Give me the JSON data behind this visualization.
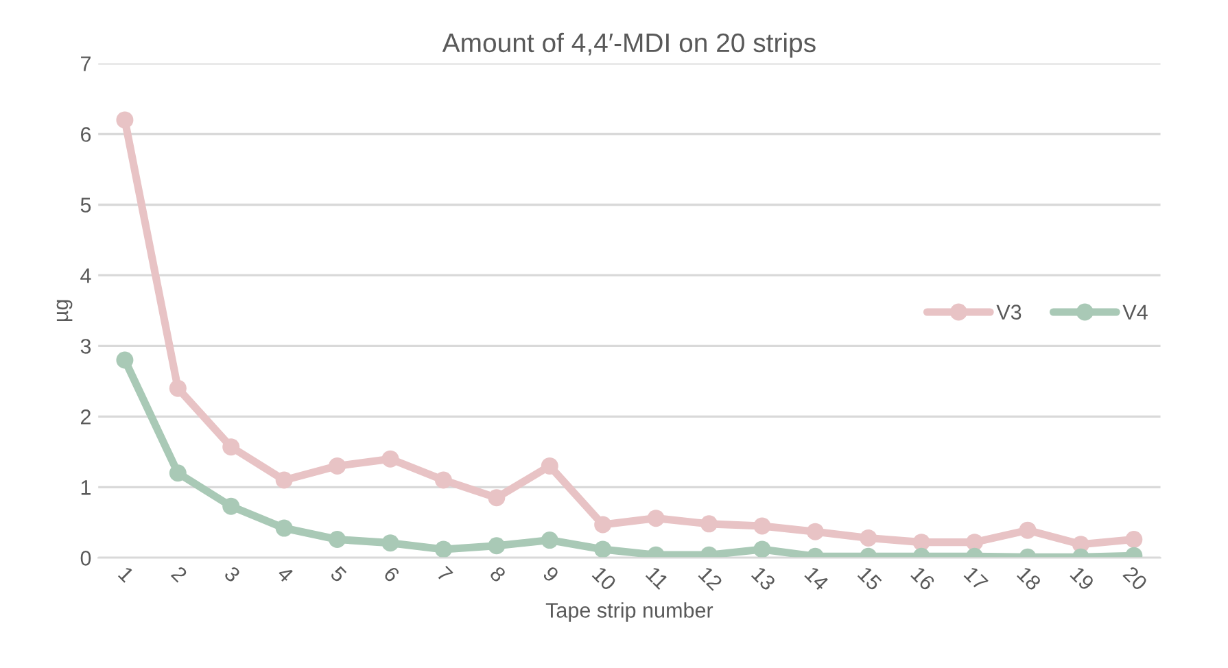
{
  "chart_data": {
    "type": "line",
    "title": "Amount of 4,4′-MDI on 20 strips",
    "xlabel": "Tape strip number",
    "ylabel": "µg",
    "categories": [
      "1",
      "2",
      "3",
      "4",
      "5",
      "6",
      "7",
      "8",
      "9",
      "10",
      "11",
      "12",
      "13",
      "14",
      "15",
      "16",
      "17",
      "18",
      "19",
      "20"
    ],
    "series": [
      {
        "name": "V3",
        "color": "#e8c3c5",
        "values": [
          6.2,
          2.4,
          1.57,
          1.1,
          1.3,
          1.4,
          1.1,
          0.85,
          1.3,
          0.47,
          0.56,
          0.48,
          0.45,
          0.37,
          0.28,
          0.22,
          0.22,
          0.39,
          0.19,
          0.26
        ]
      },
      {
        "name": "V4",
        "color": "#a9c9b6",
        "values": [
          2.8,
          1.2,
          0.73,
          0.42,
          0.26,
          0.21,
          0.12,
          0.17,
          0.25,
          0.12,
          0.04,
          0.04,
          0.12,
          0.02,
          0.02,
          0.02,
          0.02,
          0.01,
          0.01,
          0.03
        ]
      }
    ],
    "ylim": [
      0,
      7
    ],
    "yticks": [
      0,
      1,
      2,
      3,
      4,
      5,
      6,
      7
    ],
    "grid": "y",
    "legend": "right",
    "marker": "circle",
    "line_style": "solid"
  }
}
